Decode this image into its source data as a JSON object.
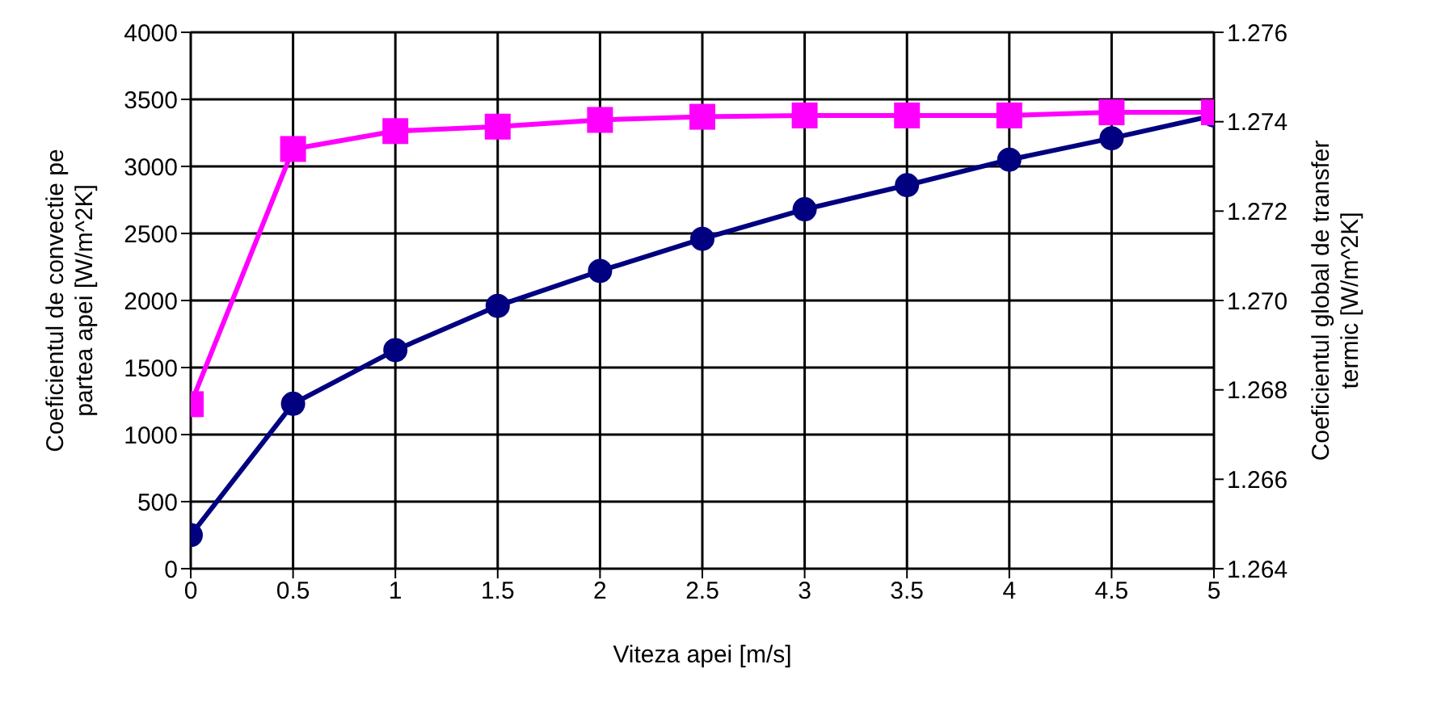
{
  "chart_data": {
    "type": "line",
    "xlabel": "Viteza apei [m/s]",
    "ylabel": "Coeficientul de convectie pe partea apei [W/m^2K]",
    "y2label": "Coeficientul global de transfer termic [W/m^2K]",
    "x": [
      0,
      0.5,
      1,
      1.5,
      2,
      2.5,
      3,
      3.5,
      4,
      4.5,
      5
    ],
    "series": [
      {
        "color": "#000080",
        "marker": "circle",
        "values": [
          250,
          1230,
          1630,
          1960,
          2220,
          2460,
          2680,
          2860,
          3050,
          3210,
          3380
        ]
      },
      {
        "color": "#ff00ff",
        "marker": "square",
        "axis": "y2",
        "values": [
          1.26768,
          1.27339,
          1.27379,
          1.27389,
          1.27404,
          1.27411,
          1.27414,
          1.27414,
          1.27414,
          1.27421,
          1.27421
        ]
      }
    ],
    "xlim": [
      0,
      5
    ],
    "xticks": [
      0,
      0.5,
      1,
      1.5,
      2,
      2.5,
      3,
      3.5,
      4,
      4.5,
      5
    ],
    "ylim": [
      0,
      4000
    ],
    "yticks": [
      0,
      500,
      1000,
      1500,
      2000,
      2500,
      3000,
      3500,
      4000
    ],
    "y2lim": [
      1.264,
      1.276
    ],
    "y2ticks": [
      1.264,
      1.266,
      1.268,
      {
        "value": 1.27,
        "label": "1.270"
      },
      1.272,
      1.274,
      1.276
    ],
    "grid": true,
    "legend": false,
    "line_style": "solid"
  }
}
